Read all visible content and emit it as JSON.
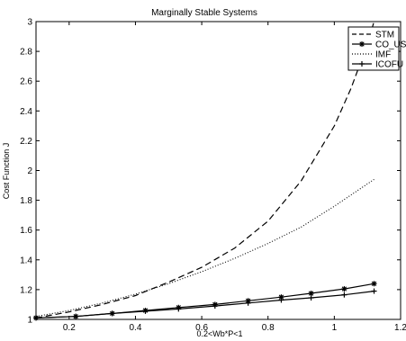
{
  "chart_data": {
    "type": "line",
    "title": "Marginally Stable Systems",
    "xlabel": "0.2<Wb*P<1",
    "ylabel": "Cost Function J",
    "xlim": [
      0.1,
      1.2
    ],
    "ylim": [
      1.0,
      3.0
    ],
    "xticks": [
      "0.2",
      "0.4",
      "0.6",
      "0.8",
      "1",
      "1.2"
    ],
    "xtick_values": [
      0.2,
      0.4,
      0.6,
      0.8,
      1.0,
      1.2
    ],
    "yticks": [
      "1",
      "1.2",
      "1.4",
      "1.6",
      "1.8",
      "2",
      "2.2",
      "2.4",
      "2.6",
      "2.8",
      "3"
    ],
    "ytick_values": [
      1.0,
      1.2,
      1.4,
      1.6,
      1.8,
      2.0,
      2.2,
      2.4,
      2.6,
      2.8,
      3.0
    ],
    "grid": false,
    "legend_position": "top-right",
    "series": [
      {
        "name": "STM",
        "style": "dashed",
        "marker": "none",
        "color": "#000000",
        "x": [
          0.1,
          0.2,
          0.3,
          0.4,
          0.5,
          0.6,
          0.7,
          0.8,
          0.9,
          1.0,
          1.05,
          1.1,
          1.12
        ],
        "y": [
          1.01,
          1.05,
          1.1,
          1.16,
          1.25,
          1.35,
          1.48,
          1.66,
          1.93,
          2.3,
          2.55,
          2.85,
          3.0
        ]
      },
      {
        "name": "CO_US",
        "style": "solid",
        "marker": "asterisk",
        "color": "#000000",
        "x": [
          0.1,
          0.22,
          0.33,
          0.43,
          0.53,
          0.64,
          0.74,
          0.84,
          0.93,
          1.03,
          1.12
        ],
        "y": [
          1.01,
          1.02,
          1.04,
          1.06,
          1.08,
          1.1,
          1.125,
          1.15,
          1.175,
          1.205,
          1.24
        ]
      },
      {
        "name": "IMF",
        "style": "dotted",
        "marker": "none",
        "color": "#000000",
        "x": [
          0.1,
          0.2,
          0.3,
          0.4,
          0.5,
          0.6,
          0.7,
          0.8,
          0.9,
          1.0,
          1.12
        ],
        "y": [
          1.02,
          1.06,
          1.11,
          1.17,
          1.24,
          1.32,
          1.41,
          1.51,
          1.62,
          1.76,
          1.94
        ]
      },
      {
        "name": "ICOFU",
        "style": "solid",
        "marker": "plus",
        "color": "#000000",
        "x": [
          0.1,
          0.22,
          0.33,
          0.43,
          0.53,
          0.64,
          0.74,
          0.84,
          0.93,
          1.03,
          1.12
        ],
        "y": [
          1.01,
          1.02,
          1.04,
          1.055,
          1.07,
          1.09,
          1.11,
          1.13,
          1.145,
          1.165,
          1.19
        ]
      }
    ]
  }
}
